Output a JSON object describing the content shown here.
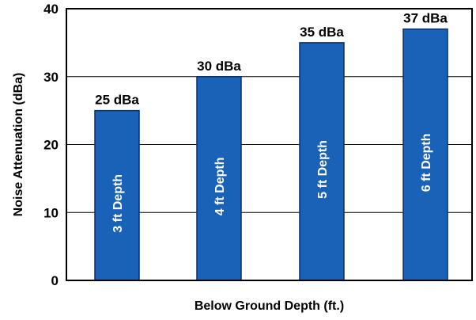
{
  "chart_data": {
    "type": "bar",
    "categories": [
      "3 ft Depth",
      "4 ft Depth",
      "5 ft Depth",
      "6 ft Depth"
    ],
    "values": [
      25,
      30,
      35,
      37
    ],
    "data_labels": [
      "25 dBa",
      "30 dBa",
      "35 dBa",
      "37 dBa"
    ],
    "title": "",
    "xlabel": "Below Ground Depth (ft.)",
    "ylabel": "Noise Attenuation (dBa)",
    "ylim": [
      0,
      40
    ],
    "yticks": [
      0,
      10,
      20,
      30,
      40
    ],
    "grid": true,
    "legend": "none",
    "bar_color": "#1a62b8",
    "bar_edge_color": "#0b2f66"
  }
}
